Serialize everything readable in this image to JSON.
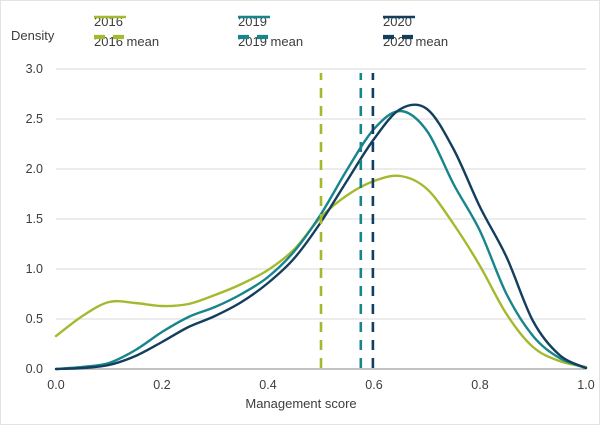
{
  "accent_colors": {
    "c2016": "#a6b92e",
    "c2019": "#17858b",
    "c2020": "#133e5e",
    "grid": "#d9d9d9",
    "axis": "#9e9e9e",
    "text": "#3d3d3d"
  },
  "chart_data": {
    "type": "line",
    "title": "",
    "subtitle": "",
    "xlabel": "Management score",
    "ylabel": "Density",
    "xlim": [
      0,
      1
    ],
    "ylim": [
      0,
      3
    ],
    "grid": "horizontal",
    "legend_position": "top",
    "x_ticks": [
      0,
      0.2,
      0.4,
      0.6,
      0.8,
      1.0
    ],
    "x_tick_labels": [
      "0.0",
      "0.2",
      "0.4",
      "0.6",
      "0.8",
      "1.0"
    ],
    "y_ticks": [
      0,
      0.5,
      1.0,
      1.5,
      2.0,
      2.5,
      3.0
    ],
    "y_tick_labels": [
      "0.0",
      "0.5",
      "1.0",
      "1.5",
      "2.0",
      "2.5",
      "3.0"
    ],
    "x": [
      0,
      0.05,
      0.1,
      0.15,
      0.2,
      0.25,
      0.3,
      0.35,
      0.4,
      0.45,
      0.5,
      0.55,
      0.6,
      0.65,
      0.7,
      0.75,
      0.8,
      0.85,
      0.9,
      0.95,
      1.0
    ],
    "series": [
      {
        "name": "2016",
        "mean_label": "2016 mean",
        "color": "#a6b92e",
        "mean": 0.5,
        "values": [
          0.33,
          0.53,
          0.67,
          0.66,
          0.63,
          0.65,
          0.74,
          0.85,
          0.99,
          1.2,
          1.52,
          1.74,
          1.88,
          1.93,
          1.8,
          1.45,
          1.03,
          0.55,
          0.22,
          0.08,
          0.02
        ]
      },
      {
        "name": "2019",
        "mean_label": "2019 mean",
        "color": "#17858b",
        "mean": 0.575,
        "values": [
          0.0,
          0.02,
          0.06,
          0.19,
          0.37,
          0.52,
          0.62,
          0.75,
          0.92,
          1.18,
          1.55,
          2.0,
          2.4,
          2.58,
          2.38,
          1.85,
          1.38,
          0.75,
          0.33,
          0.11,
          0.01
        ]
      },
      {
        "name": "2020",
        "mean_label": "2020 mean",
        "color": "#133e5e",
        "mean": 0.598,
        "values": [
          0.0,
          0.01,
          0.04,
          0.13,
          0.27,
          0.42,
          0.53,
          0.67,
          0.86,
          1.11,
          1.47,
          1.89,
          2.3,
          2.6,
          2.6,
          2.2,
          1.62,
          1.12,
          0.48,
          0.14,
          0.01
        ]
      }
    ]
  }
}
